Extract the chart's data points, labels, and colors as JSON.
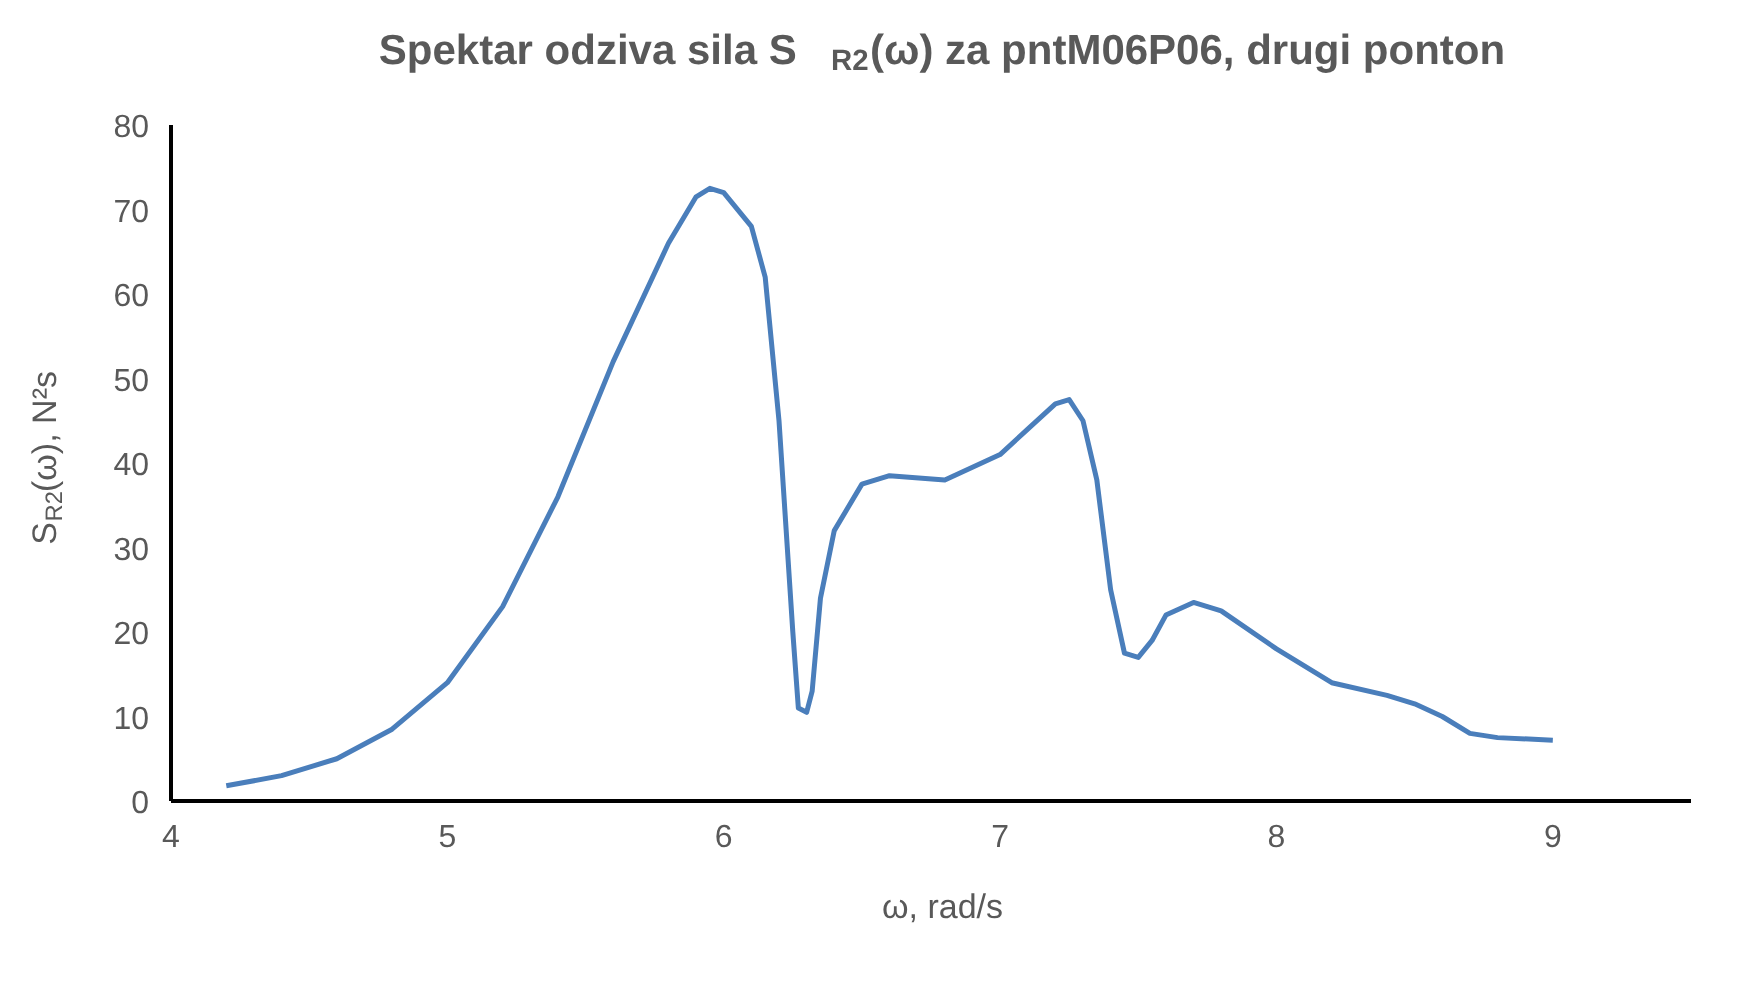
{
  "chart_data": {
    "type": "line",
    "title": "Spektar odziva sila S$_{R2}$(ω) za pntM06P06, drugi ponton",
    "xlabel": "ω, rad/s",
    "ylabel": "S$_{R2}$(ω), N²s",
    "x": [
      4.2,
      4.4,
      4.6,
      4.8,
      5.0,
      5.2,
      5.4,
      5.6,
      5.8,
      5.9,
      5.95,
      6.0,
      6.1,
      6.15,
      6.2,
      6.25,
      6.27,
      6.3,
      6.32,
      6.35,
      6.4,
      6.5,
      6.6,
      6.8,
      7.0,
      7.1,
      7.2,
      7.25,
      7.3,
      7.35,
      7.4,
      7.45,
      7.5,
      7.55,
      7.6,
      7.7,
      7.8,
      8.0,
      8.2,
      8.4,
      8.5,
      8.6,
      8.7,
      8.8,
      9.0
    ],
    "series": [
      {
        "color": "#4a7ebb",
        "values": [
          1.8,
          3,
          5,
          8.5,
          14,
          23,
          36,
          52,
          66,
          71.5,
          72.5,
          72,
          68,
          62,
          45,
          20,
          11,
          10.5,
          13,
          24,
          32,
          37.5,
          38.5,
          38,
          41,
          44,
          47,
          47.5,
          45,
          38,
          25,
          17.5,
          17,
          19,
          22,
          23.5,
          22.5,
          18,
          14,
          12.5,
          11.5,
          10,
          8,
          7.5,
          7.2
        ]
      }
    ],
    "xlim": [
      4,
      9.5
    ],
    "xticks": [
      4,
      5,
      6,
      7,
      8,
      9
    ],
    "ylim": [
      0,
      80
    ],
    "yticks": [
      0,
      10,
      20,
      30,
      40,
      50,
      60,
      70,
      80
    ],
    "grid": false,
    "marker": "none",
    "line_style": "solid"
  }
}
